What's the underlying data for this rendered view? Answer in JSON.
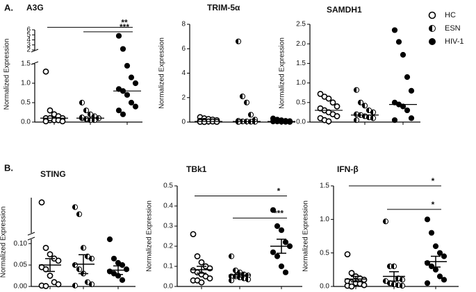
{
  "panel_labels": [
    "A.",
    "B."
  ],
  "legend": [
    {
      "name": "HC",
      "marker": "open"
    },
    {
      "name": "ESN",
      "marker": "half"
    },
    {
      "name": "HIV-1",
      "marker": "filled"
    }
  ],
  "chart_data": [
    {
      "type": "dot",
      "title": "A3G",
      "ylabel": "Normalized Expression",
      "axis_segments": [
        {
          "ylim": [
            0,
            1.5
          ],
          "yticks": [
            {
              "value": 0,
              "label": "0.0"
            },
            0.5,
            {
              "value": 1,
              "label": "1.0"
            },
            1.5
          ]
        },
        {
          "ylim": [
            2,
            6
          ],
          "yticks": [
            2,
            3,
            4,
            5,
            6
          ]
        }
      ],
      "series": [
        {
          "values": [
            1.3,
            0.3,
            0.2,
            0.15,
            0.1,
            0.1,
            0.05,
            0.05,
            0.05,
            0.02,
            0.02,
            0.1
          ],
          "center": 0.1
        },
        {
          "values": [
            0.5,
            0.3,
            0.2,
            0.15,
            0.1,
            0.1,
            0.08,
            0.05,
            0.05,
            0.1,
            0.12
          ],
          "center": 0.1
        },
        {
          "values": [
            4.8,
            2.2,
            1.45,
            1.15,
            1.0,
            0.85,
            0.8,
            0.7,
            0.5,
            0.4,
            0.3,
            0.2
          ],
          "center": 0.8
        }
      ],
      "annotations": [
        {
          "text": "**",
          "groups": [
            0,
            2
          ],
          "y": 6.5
        },
        {
          "text": "***",
          "groups": [
            1,
            2
          ],
          "y": 5.6
        }
      ]
    },
    {
      "type": "dot",
      "title": "TRIM-5α",
      "ylabel": "Normalized Expression",
      "axis_segments": [
        {
          "ylim": [
            0,
            8
          ],
          "yticks": [
            0,
            2,
            4,
            6,
            8
          ]
        }
      ],
      "series": [
        {
          "values": [
            0.4,
            0.3,
            0.25,
            0.2,
            0.15,
            0.1,
            0.1,
            0.05,
            0.05,
            0.02,
            0.02,
            0.01
          ],
          "center": 0.05
        },
        {
          "values": [
            6.6,
            2.1,
            1.6,
            0.6,
            0.2,
            0.1,
            0.05,
            0.05,
            0.03,
            0.02,
            0.01
          ],
          "center": 0.05
        },
        {
          "values": [
            0.3,
            0.2,
            0.15,
            0.1,
            0.08,
            0.05,
            0.05,
            0.03,
            0.02,
            0.01
          ],
          "center": 0.05
        }
      ],
      "annotations": []
    },
    {
      "type": "dot",
      "title": "SAMDH1",
      "ylabel": "Normalized Expression",
      "axis_segments": [
        {
          "ylim": [
            0,
            2.5
          ],
          "yticks": [
            {
              "value": 0,
              "label": "0.0"
            },
            0.5,
            {
              "value": 1,
              "label": "1.0"
            },
            1.5,
            {
              "value": 2,
              "label": "2.0"
            },
            2.5
          ]
        }
      ],
      "series": [
        {
          "values": [
            0.72,
            0.65,
            0.6,
            0.5,
            0.4,
            0.35,
            0.3,
            0.25,
            0.2,
            0.15,
            0.1,
            0.05,
            0.02
          ],
          "center": 0.3
        },
        {
          "values": [
            0.82,
            0.5,
            0.42,
            0.3,
            0.25,
            0.2,
            0.18,
            0.15,
            0.12,
            0.1,
            0.05
          ],
          "center": 0.18
        },
        {
          "values": [
            2.35,
            2.05,
            1.72,
            1.15,
            0.8,
            0.5,
            0.45,
            0.4,
            0.3,
            0.1,
            0.05
          ],
          "center": 0.45
        }
      ],
      "annotations": []
    },
    {
      "type": "dot",
      "title": "STING",
      "ylabel": "Normalized Expression",
      "axis_segments": [
        {
          "ylim": [
            0,
            0.11
          ],
          "yticks": [
            {
              "value": 0,
              "label": "0.00"
            },
            0.05,
            {
              "value": 0.1,
              "label": "0.10"
            }
          ]
        },
        {
          "ylim": [
            0.15,
            0.3
          ]
        }
      ],
      "series": [
        {
          "values": [
            0.28,
            0.09,
            0.075,
            0.065,
            0.06,
            0.045,
            0.04,
            0.025,
            0.01,
            0.005,
            0.002,
            0.001
          ],
          "mean": 0.05,
          "sem": 0.015
        },
        {
          "values": [
            0.26,
            0.23,
            0.09,
            0.07,
            0.065,
            0.05,
            0.04,
            0.03,
            0.01,
            0.005,
            0.002
          ],
          "mean": 0.052,
          "sem": 0.022
        },
        {
          "values": [
            0.11,
            0.065,
            0.055,
            0.05,
            0.04,
            0.035,
            0.03,
            0.025,
            0.015
          ],
          "mean": 0.038,
          "sem": 0.01
        }
      ],
      "annotations": []
    },
    {
      "type": "dot",
      "title": "TBk1",
      "ylabel": "Normalized Expression",
      "axis_segments": [
        {
          "ylim": [
            0,
            0.5
          ],
          "yticks": [
            {
              "value": 0,
              "label": "0.0"
            },
            0.1,
            0.2,
            0.3,
            0.4,
            0.5
          ]
        }
      ],
      "series": [
        {
          "values": [
            0.26,
            0.15,
            0.12,
            0.1,
            0.09,
            0.08,
            0.07,
            0.06,
            0.05,
            0.04,
            0.03,
            0.03,
            0.02
          ],
          "mean": 0.083,
          "sem": 0.017
        },
        {
          "values": [
            0.15,
            0.08,
            0.07,
            0.06,
            0.055,
            0.05,
            0.05,
            0.045,
            0.04,
            0.035,
            0.03
          ],
          "mean": 0.057,
          "sem": 0.01
        },
        {
          "values": [
            0.38,
            0.3,
            0.28,
            0.22,
            0.2,
            0.17,
            0.15,
            0.1,
            0.07
          ],
          "mean": 0.2,
          "sem": 0.035
        }
      ],
      "annotations": [
        {
          "text": "*",
          "groups": [
            0,
            2
          ],
          "y": 0.45
        },
        {
          "text": "***",
          "groups": [
            1,
            2
          ],
          "y": 0.34
        }
      ]
    },
    {
      "type": "dot",
      "title": "IFN-β",
      "ylabel": "Normalized Expression",
      "axis_segments": [
        {
          "ylim": [
            0,
            1.5
          ],
          "yticks": [
            {
              "value": 0,
              "label": "0.0"
            },
            0.5,
            {
              "value": 1,
              "label": "1.0"
            },
            1.5
          ]
        }
      ],
      "series": [
        {
          "values": [
            0.48,
            0.2,
            0.15,
            0.12,
            0.1,
            0.08,
            0.06,
            0.05,
            0.04,
            0.02,
            0.01,
            0
          ],
          "mean": 0.11,
          "sem": 0.04
        },
        {
          "values": [
            0.97,
            0.3,
            0.3,
            0.12,
            0.1,
            0.08,
            0.05,
            0.03,
            0.02,
            0.01
          ],
          "mean": 0.15,
          "sem": 0.07
        },
        {
          "values": [
            1.0,
            0.8,
            0.6,
            0.5,
            0.45,
            0.35,
            0.3,
            0.25,
            0.15,
            0.1,
            0.05
          ],
          "mean": 0.37,
          "sem": 0.08
        }
      ],
      "annotations": [
        {
          "text": "*",
          "groups": [
            0,
            2
          ],
          "y": 1.5
        },
        {
          "text": "*",
          "groups": [
            1,
            2
          ],
          "y": 1.15
        }
      ]
    }
  ]
}
